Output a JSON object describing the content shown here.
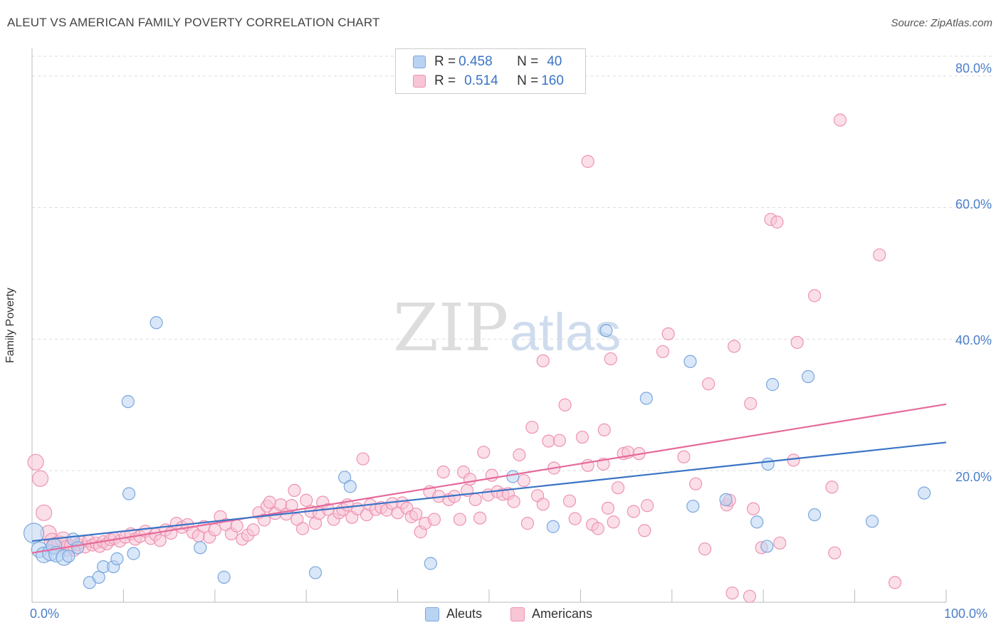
{
  "title": "ALEUT VS AMERICAN FAMILY POVERTY CORRELATION CHART",
  "source": "Source: ZipAtlas.com",
  "watermark": {
    "zip": "ZIP",
    "atlas": "atlas"
  },
  "colors": {
    "aleut_fill": "#b9d3f2",
    "aleut_stroke": "#7aa7de",
    "aleut_line": "#3a74c6",
    "american_fill": "#f8c5d5",
    "american_stroke": "#ee93b1",
    "american_line": "#e5699a",
    "tick_text": "#4a7fc9"
  },
  "legend_top": {
    "aleut": {
      "r_label": "R = ",
      "r_value": "0.458",
      "n_label": "N = ",
      "n_value": "40"
    },
    "americans": {
      "r_label": "R = ",
      "r_value": "0.514",
      "n_label": "N = ",
      "n_value": "160"
    }
  },
  "legend_bottom": {
    "aleut": "Aleuts",
    "americans": "Americans"
  },
  "chart_data": {
    "type": "scatter",
    "title": "ALEUT VS AMERICAN FAMILY POVERTY CORRELATION CHART",
    "xlabel": "",
    "ylabel": "Family Poverty",
    "xlim": [
      0,
      100
    ],
    "ylim": [
      0,
      83
    ],
    "x_tick_labels": [
      "0.0%",
      "100.0%"
    ],
    "y_ticks": [
      20,
      40,
      60,
      80
    ],
    "y_tick_labels": [
      "20.0%",
      "40.0%",
      "60.0%",
      "80.0%"
    ],
    "grid": true,
    "legend_position": "bottom-center",
    "series": [
      {
        "name": "Aleuts",
        "R": 0.458,
        "N": 40,
        "trend": {
          "x": [
            0,
            100
          ],
          "y": [
            9.3,
            24.3
          ]
        },
        "points": [
          [
            0.2,
            10.5
          ],
          [
            0.8,
            8.0
          ],
          [
            1.3,
            7.2
          ],
          [
            2.0,
            7.5
          ],
          [
            2.4,
            8.5
          ],
          [
            2.7,
            7.3
          ],
          [
            3.5,
            6.8
          ],
          [
            4.5,
            9.6
          ],
          [
            5.0,
            8.3
          ],
          [
            6.3,
            3.0
          ],
          [
            7.3,
            3.8
          ],
          [
            7.8,
            5.4
          ],
          [
            8.9,
            5.4
          ],
          [
            9.3,
            6.6
          ],
          [
            10.5,
            30.5
          ],
          [
            10.6,
            16.5
          ],
          [
            11.1,
            7.4
          ],
          [
            13.6,
            42.5
          ],
          [
            18.4,
            8.3
          ],
          [
            21.0,
            3.8
          ],
          [
            31.0,
            4.5
          ],
          [
            34.2,
            19.0
          ],
          [
            34.8,
            17.6
          ],
          [
            43.6,
            5.9
          ],
          [
            52.6,
            19.1
          ],
          [
            57.0,
            11.5
          ],
          [
            62.8,
            41.3
          ],
          [
            67.2,
            31.0
          ],
          [
            72.0,
            36.6
          ],
          [
            72.3,
            14.6
          ],
          [
            75.9,
            15.6
          ],
          [
            79.3,
            12.2
          ],
          [
            80.4,
            8.5
          ],
          [
            80.5,
            21.0
          ],
          [
            81.0,
            33.1
          ],
          [
            84.9,
            34.3
          ],
          [
            85.6,
            13.3
          ],
          [
            91.9,
            12.3
          ],
          [
            97.6,
            16.6
          ],
          [
            4.0,
            7.0
          ]
        ]
      },
      {
        "name": "Americans",
        "R": 0.514,
        "N": 160,
        "trend": {
          "x": [
            0,
            100
          ],
          "y": [
            7.5,
            30.1
          ]
        },
        "points": [
          [
            0.4,
            21.3
          ],
          [
            0.9,
            18.8
          ],
          [
            1.3,
            13.6
          ],
          [
            1.8,
            10.5
          ],
          [
            2.2,
            9.3
          ],
          [
            2.6,
            8.7
          ],
          [
            3.0,
            8.9
          ],
          [
            3.4,
            9.5
          ],
          [
            3.8,
            8.2
          ],
          [
            4.2,
            8.6
          ],
          [
            4.6,
            7.9
          ],
          [
            5.0,
            8.8
          ],
          [
            5.4,
            9.1
          ],
          [
            5.8,
            8.4
          ],
          [
            6.2,
            9.3
          ],
          [
            6.6,
            8.7
          ],
          [
            7.0,
            9.0
          ],
          [
            7.4,
            8.5
          ],
          [
            7.8,
            9.2
          ],
          [
            8.2,
            8.9
          ],
          [
            8.6,
            9.5
          ],
          [
            9.0,
            9.7
          ],
          [
            9.6,
            9.3
          ],
          [
            10.2,
            9.9
          ],
          [
            10.8,
            10.4
          ],
          [
            11.3,
            9.6
          ],
          [
            11.8,
            10.0
          ],
          [
            12.4,
            10.8
          ],
          [
            13.0,
            9.7
          ],
          [
            13.5,
            10.3
          ],
          [
            14.0,
            9.4
          ],
          [
            14.6,
            11.0
          ],
          [
            15.2,
            10.5
          ],
          [
            15.8,
            12.0
          ],
          [
            16.4,
            11.4
          ],
          [
            17.0,
            11.8
          ],
          [
            17.6,
            10.6
          ],
          [
            18.2,
            10.1
          ],
          [
            18.8,
            11.5
          ],
          [
            19.4,
            9.9
          ],
          [
            20.0,
            11.0
          ],
          [
            20.6,
            13.0
          ],
          [
            21.2,
            11.8
          ],
          [
            21.8,
            10.4
          ],
          [
            22.4,
            11.6
          ],
          [
            23.0,
            9.6
          ],
          [
            23.6,
            10.2
          ],
          [
            24.2,
            11.0
          ],
          [
            24.8,
            13.6
          ],
          [
            25.4,
            12.5
          ],
          [
            25.7,
            14.6
          ],
          [
            26.0,
            15.2
          ],
          [
            26.6,
            13.5
          ],
          [
            27.2,
            14.8
          ],
          [
            27.8,
            13.4
          ],
          [
            28.4,
            14.7
          ],
          [
            28.7,
            17.0
          ],
          [
            29.0,
            12.6
          ],
          [
            29.6,
            11.2
          ],
          [
            30.0,
            15.5
          ],
          [
            30.5,
            13.8
          ],
          [
            31.0,
            12.0
          ],
          [
            31.4,
            13.5
          ],
          [
            31.8,
            15.2
          ],
          [
            32.4,
            14.1
          ],
          [
            33.0,
            12.6
          ],
          [
            33.6,
            13.6
          ],
          [
            34.0,
            14.1
          ],
          [
            34.5,
            14.8
          ],
          [
            35.0,
            12.9
          ],
          [
            35.6,
            14.2
          ],
          [
            36.2,
            21.8
          ],
          [
            36.6,
            13.3
          ],
          [
            37.0,
            14.8
          ],
          [
            37.6,
            14.1
          ],
          [
            38.2,
            14.4
          ],
          [
            38.8,
            14.0
          ],
          [
            39.4,
            15.0
          ],
          [
            40.0,
            13.6
          ],
          [
            40.5,
            15.1
          ],
          [
            41.0,
            14.3
          ],
          [
            41.5,
            13.0
          ],
          [
            42.0,
            13.4
          ],
          [
            42.5,
            10.7
          ],
          [
            43.0,
            12.0
          ],
          [
            43.5,
            16.8
          ],
          [
            44.0,
            12.6
          ],
          [
            44.5,
            16.1
          ],
          [
            45.0,
            19.8
          ],
          [
            45.6,
            15.6
          ],
          [
            46.2,
            16.1
          ],
          [
            46.8,
            12.6
          ],
          [
            47.2,
            19.8
          ],
          [
            47.6,
            17.0
          ],
          [
            47.9,
            18.7
          ],
          [
            48.5,
            15.6
          ],
          [
            49.0,
            12.8
          ],
          [
            49.4,
            22.8
          ],
          [
            49.9,
            16.3
          ],
          [
            50.3,
            19.3
          ],
          [
            50.9,
            16.8
          ],
          [
            51.5,
            16.4
          ],
          [
            52.1,
            16.5
          ],
          [
            52.7,
            15.3
          ],
          [
            53.3,
            22.4
          ],
          [
            53.8,
            18.5
          ],
          [
            54.2,
            12.0
          ],
          [
            54.7,
            26.6
          ],
          [
            55.3,
            16.2
          ],
          [
            55.9,
            14.9
          ],
          [
            56.5,
            24.5
          ],
          [
            57.1,
            20.4
          ],
          [
            57.7,
            24.6
          ],
          [
            58.3,
            30.0
          ],
          [
            58.8,
            15.4
          ],
          [
            59.4,
            12.7
          ],
          [
            60.2,
            25.1
          ],
          [
            60.8,
            20.8
          ],
          [
            61.3,
            11.8
          ],
          [
            61.9,
            11.2
          ],
          [
            62.5,
            21.0
          ],
          [
            62.6,
            26.2
          ],
          [
            63.0,
            14.3
          ],
          [
            63.6,
            12.2
          ],
          [
            64.1,
            17.4
          ],
          [
            64.7,
            22.6
          ],
          [
            65.2,
            22.8
          ],
          [
            65.8,
            13.8
          ],
          [
            66.4,
            22.6
          ],
          [
            67.0,
            10.9
          ],
          [
            67.3,
            14.7
          ],
          [
            69.0,
            38.1
          ],
          [
            69.6,
            40.8
          ],
          [
            71.3,
            22.1
          ],
          [
            72.6,
            18.0
          ],
          [
            73.6,
            8.1
          ],
          [
            74.0,
            33.2
          ],
          [
            76.0,
            14.8
          ],
          [
            76.3,
            15.5
          ],
          [
            76.8,
            38.9
          ],
          [
            78.6,
            30.2
          ],
          [
            78.9,
            14.2
          ],
          [
            79.8,
            8.3
          ],
          [
            80.8,
            58.2
          ],
          [
            81.5,
            57.8
          ],
          [
            81.8,
            9.0
          ],
          [
            83.3,
            21.6
          ],
          [
            83.7,
            39.5
          ],
          [
            85.6,
            46.6
          ],
          [
            87.5,
            17.5
          ],
          [
            87.8,
            7.5
          ],
          [
            88.4,
            73.3
          ],
          [
            92.7,
            52.8
          ],
          [
            94.4,
            3.0
          ],
          [
            76.6,
            1.4
          ],
          [
            78.5,
            0.9
          ],
          [
            60.8,
            67.0
          ],
          [
            55.9,
            36.7
          ],
          [
            63.3,
            37.0
          ]
        ]
      }
    ]
  }
}
